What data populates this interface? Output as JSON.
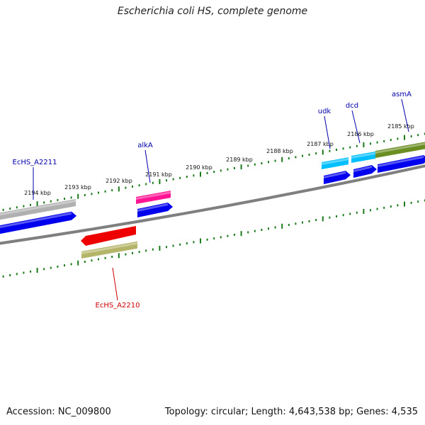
{
  "title": "Escherichia coli HS, complete genome",
  "footer": {
    "accession": "Accession: NC_009800",
    "summary": "Topology: circular; Length: 4,643,538 bp; Genes: 4,535"
  },
  "colors": {
    "backbone": "#808080",
    "ticks": "#1a7a1a",
    "cds_forward": "#0000ee",
    "label_forward": "#0000aa",
    "label_reverse": "#cc0000"
  },
  "tick_labels": [
    "2185 kbp",
    "2186 kbp",
    "2187 kbp",
    "2188 kbp",
    "2189 kbp",
    "2190 kbp",
    "2191 kbp",
    "2192 kbp",
    "2193 kbp",
    "2194 kbp"
  ],
  "genes": [
    {
      "label": "asmA",
      "strand": "forward",
      "gene_color": "#6b8e23"
    },
    {
      "label": "dcd",
      "strand": "forward",
      "gene_color": "#00bfff"
    },
    {
      "label": "udk",
      "strand": "forward",
      "gene_color": "#00bfff"
    },
    {
      "label": "alkA",
      "strand": "forward",
      "gene_color": "#ff1493"
    },
    {
      "label": "EcHS_A2211",
      "strand": "forward",
      "gene_color": "#b0b0b0"
    },
    {
      "label": "EcHS_A2210",
      "strand": "reverse",
      "gene_color": "#b5b56a"
    }
  ]
}
